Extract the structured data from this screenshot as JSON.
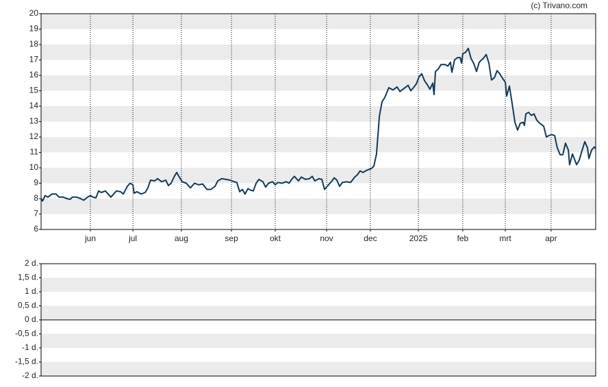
{
  "chart_data": [
    {
      "type": "line",
      "source": "(c) Trivano.com",
      "color": "#0d3a5c",
      "grid": true,
      "xlim": [
        0,
        270
      ],
      "ylim": [
        6,
        20
      ],
      "yticks": [
        6,
        7,
        8,
        9,
        10,
        11,
        12,
        13,
        14,
        15,
        16,
        17,
        18,
        19,
        20
      ],
      "xticks": [
        {
          "value": 24,
          "label": "jun"
        },
        {
          "value": 44.7,
          "label": "jul"
        },
        {
          "value": 68.3,
          "label": "aug"
        },
        {
          "value": 92.7,
          "label": "sep"
        },
        {
          "value": 114,
          "label": "okt"
        },
        {
          "value": 139,
          "label": "nov"
        },
        {
          "value": 160.3,
          "label": "dec"
        },
        {
          "value": 183.7,
          "label": "2025"
        },
        {
          "value": 205.3,
          "label": "feb"
        },
        {
          "value": 226,
          "label": "mrt"
        },
        {
          "value": 248.3,
          "label": "apr"
        }
      ],
      "x": [
        0,
        0.7,
        2,
        3.3,
        5.3,
        7.3,
        8.7,
        10.7,
        12.7,
        14,
        15.3,
        17.3,
        19.3,
        20.7,
        22.7,
        24,
        25.3,
        26.7,
        28,
        29.3,
        31.3,
        32.7,
        34,
        35.3,
        36.7,
        38.7,
        40,
        42,
        43.3,
        44.7,
        45.3,
        46.7,
        48.7,
        50.7,
        52,
        53.3,
        55.3,
        56.7,
        58.7,
        60.7,
        62,
        63.3,
        64.7,
        66,
        67.3,
        68.7,
        70.7,
        72.7,
        74.7,
        76.7,
        78.7,
        80.7,
        82.7,
        84.7,
        86,
        88,
        90,
        92,
        94,
        95.3,
        96.7,
        98,
        99.3,
        100.7,
        102,
        103.3,
        104.7,
        106,
        108,
        109.3,
        110.7,
        112.7,
        114,
        115.3,
        117.3,
        119.3,
        120.7,
        122,
        123.3,
        125.3,
        126.7,
        128.7,
        130.7,
        132,
        133.3,
        135.3,
        136.7,
        138,
        139.3,
        141.3,
        142.7,
        144,
        145.3,
        146.7,
        148.7,
        150.7,
        152.7,
        154,
        155.3,
        156.7,
        158.7,
        160.7,
        162,
        163.3,
        164.7,
        166,
        167.3,
        169.3,
        171.3,
        173.3,
        174.7,
        176.7,
        178.7,
        180,
        181.3,
        182.7,
        184,
        185.3,
        186.7,
        188,
        189.3,
        190.7,
        191.3,
        192,
        193.3,
        194.7,
        196.7,
        198,
        199.3,
        200,
        201.3,
        202.7,
        204,
        204.7,
        205.3,
        206.7,
        208,
        209.3,
        210.7,
        212,
        213.3,
        215.3,
        216.7,
        218,
        219.3,
        220.7,
        222,
        223.3,
        224.7,
        226,
        226.7,
        228,
        229.3,
        230.7,
        232,
        233.3,
        234.7,
        235.3,
        236,
        237.3,
        238.7,
        240,
        241.3,
        242.7,
        244.7,
        246,
        247.3,
        248.7,
        250,
        251.3,
        252.7,
        254,
        255.3,
        256.7,
        257.3,
        258.7,
        260.7,
        262,
        263.3,
        264.7,
        266,
        266.7,
        268,
        269.3,
        270
      ],
      "values": [
        8.0,
        7.85,
        8.2,
        8.1,
        8.3,
        8.3,
        8.1,
        8.1,
        8.0,
        7.95,
        8.1,
        8.1,
        8.0,
        7.9,
        8.1,
        8.2,
        8.1,
        8.05,
        8.5,
        8.4,
        8.5,
        8.3,
        8.1,
        8.3,
        8.5,
        8.45,
        8.3,
        8.8,
        9.0,
        8.9,
        8.35,
        8.45,
        8.3,
        8.4,
        8.7,
        9.2,
        9.15,
        9.3,
        9.1,
        9.2,
        8.85,
        9.0,
        9.4,
        9.7,
        9.4,
        9.1,
        9.0,
        8.7,
        9.0,
        8.9,
        8.95,
        8.6,
        8.6,
        8.8,
        9.15,
        9.3,
        9.25,
        9.2,
        9.1,
        9.05,
        8.45,
        8.6,
        8.3,
        8.65,
        8.55,
        8.5,
        9.0,
        9.25,
        9.1,
        8.75,
        9.0,
        9.1,
        8.9,
        9.05,
        9.0,
        9.1,
        9.0,
        9.25,
        9.45,
        9.15,
        9.4,
        9.25,
        9.3,
        9.45,
        9.15,
        9.3,
        9.25,
        8.6,
        8.8,
        9.1,
        9.35,
        9.2,
        8.8,
        9.05,
        9.1,
        9.05,
        9.4,
        9.55,
        9.8,
        9.7,
        9.85,
        9.95,
        10.1,
        10.9,
        13.35,
        14.3,
        14.55,
        15.2,
        15.05,
        15.25,
        14.95,
        15.15,
        15.35,
        15.0,
        15.2,
        15.45,
        15.9,
        16.1,
        15.65,
        15.4,
        15.1,
        15.5,
        14.75,
        16.25,
        16.4,
        16.7,
        16.7,
        16.6,
        16.85,
        16.2,
        17.0,
        17.15,
        17.15,
        16.8,
        17.4,
        17.5,
        17.75,
        17.1,
        16.75,
        16.25,
        16.85,
        17.1,
        17.35,
        16.8,
        15.7,
        15.85,
        16.3,
        16.1,
        15.8,
        15.55,
        14.65,
        15.3,
        14.2,
        12.95,
        12.45,
        12.9,
        12.95,
        12.75,
        13.5,
        13.6,
        13.4,
        13.5,
        13.1,
        12.9,
        12.7,
        12.0,
        12.1,
        12.15,
        12.1,
        11.3,
        10.85,
        10.85,
        11.6,
        11.15,
        10.2,
        10.9,
        10.2,
        10.5,
        11.1,
        11.7,
        11.3,
        10.6,
        11.15,
        11.35,
        11.25
      ]
    },
    {
      "type": "empty",
      "grid": true,
      "ylim": [
        -2,
        2
      ],
      "yticks": [
        {
          "value": -2,
          "label": "-2 d."
        },
        {
          "value": -1.5,
          "label": "-1,5 d."
        },
        {
          "value": -1,
          "label": "-1 d."
        },
        {
          "value": -0.5,
          "label": "-0,5 d."
        },
        {
          "value": 0,
          "label": "0 d."
        },
        {
          "value": 0.5,
          "label": "0,5 d."
        },
        {
          "value": 1,
          "label": "1 d."
        },
        {
          "value": 1.5,
          "label": "1,5 d."
        },
        {
          "value": 2,
          "label": "2 d."
        }
      ]
    }
  ]
}
